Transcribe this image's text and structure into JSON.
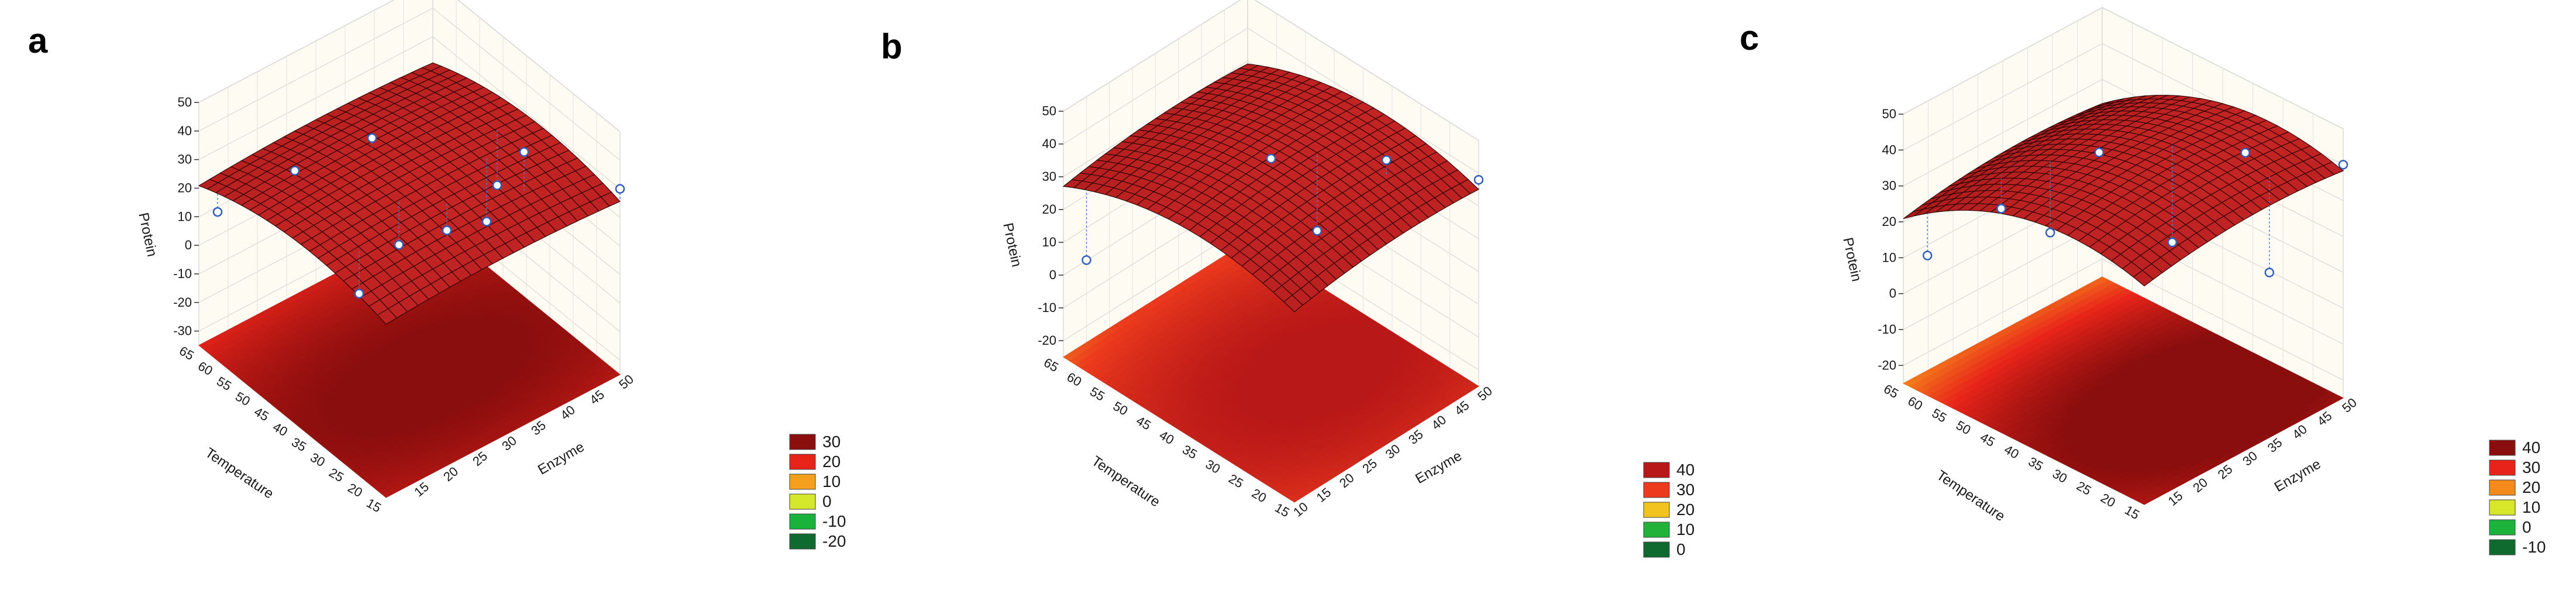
{
  "chart_data": [
    {
      "type": "surface3d",
      "panel_label": "a",
      "xlabel": "Enzyme",
      "ylabel": "Temperature",
      "zlabel": "Protein",
      "x_ticks": [
        "15",
        "20",
        "25",
        "30",
        "35",
        "40",
        "45",
        "50"
      ],
      "y_ticks": [
        "15",
        "20",
        "25",
        "30",
        "35",
        "40",
        "45",
        "50",
        "55",
        "60",
        "65"
      ],
      "z_ticks": [
        "-30",
        "-20",
        "-10",
        "0",
        "10",
        "20",
        "30",
        "40",
        "50"
      ],
      "xlim": [
        10,
        50
      ],
      "ylim": [
        15,
        65
      ],
      "zlim": [
        -35,
        50
      ],
      "surface_model": {
        "peak_x": 30,
        "peak_y": 35,
        "peak_z": 31,
        "ax": 0.004,
        "ay": 0.0095,
        "axy": 0
      },
      "points": [
        {
          "x": 50,
          "y": 15,
          "z": 30
        },
        {
          "x": 40,
          "y": 25,
          "z": 43
        },
        {
          "x": 45,
          "y": 40,
          "z": 10
        },
        {
          "x": 30,
          "y": 50,
          "z": 32
        },
        {
          "x": 20,
          "y": 55,
          "z": 26
        },
        {
          "x": 10,
          "y": 60,
          "z": 17
        },
        {
          "x": 30,
          "y": 30,
          "z": 21
        },
        {
          "x": 40,
          "y": 35,
          "z": 8
        },
        {
          "x": 25,
          "y": 35,
          "z": 16
        },
        {
          "x": 15,
          "y": 30,
          "z": 15
        }
      ],
      "legend": [
        {
          "label": "30",
          "color": "#8b0e0e"
        },
        {
          "label": "20",
          "color": "#e8241a"
        },
        {
          "label": "10",
          "color": "#f5a01c"
        },
        {
          "label": "0",
          "color": "#d5e82a"
        },
        {
          "label": "-10",
          "color": "#19b33c"
        },
        {
          "label": "-20",
          "color": "#0e6a2e"
        }
      ],
      "colors": {
        "surface": "#a71818",
        "mesh": "#2a0303"
      }
    },
    {
      "type": "surface3d",
      "panel_label": "b",
      "xlabel": "Enzyme",
      "ylabel": "Temperature",
      "zlabel": "Protein",
      "x_ticks": [
        "10",
        "15",
        "20",
        "25",
        "30",
        "35",
        "40",
        "45",
        "50"
      ],
      "y_ticks": [
        "15",
        "20",
        "25",
        "30",
        "35",
        "40",
        "45",
        "50",
        "55",
        "60",
        "65"
      ],
      "z_ticks": [
        "-20",
        "-10",
        "0",
        "10",
        "20",
        "30",
        "40",
        "50"
      ],
      "xlim": [
        10,
        50
      ],
      "ylim": [
        15,
        65
      ],
      "zlim": [
        -25,
        50
      ],
      "surface_model": {
        "peak_x": 35,
        "peak_y": 35,
        "peak_z": 41,
        "ax": 0.005,
        "ay": 0.012,
        "axy": 0
      },
      "points": [
        {
          "x": 50,
          "y": 15,
          "z": 38
        },
        {
          "x": 40,
          "y": 25,
          "z": 44
        },
        {
          "x": 30,
          "y": 40,
          "z": 40
        },
        {
          "x": 10,
          "y": 60,
          "z": 9
        },
        {
          "x": 35,
          "y": 35,
          "z": 18
        }
      ],
      "legend": [
        {
          "label": "40",
          "color": "#b91818"
        },
        {
          "label": "30",
          "color": "#ec3a1d"
        },
        {
          "label": "20",
          "color": "#f2c31f"
        },
        {
          "label": "10",
          "color": "#22b23a"
        },
        {
          "label": "0",
          "color": "#0e6a2e"
        }
      ],
      "colors": {
        "surface": "#a71818",
        "mesh": "#2a0303"
      }
    },
    {
      "type": "surface3d",
      "panel_label": "c",
      "xlabel": "Enzyme",
      "ylabel": "Temperature",
      "zlabel": "Protein",
      "x_ticks": [
        "15",
        "20",
        "25",
        "30",
        "35",
        "40",
        "45",
        "50"
      ],
      "y_ticks": [
        "15",
        "20",
        "25",
        "30",
        "35",
        "40",
        "45",
        "50",
        "55",
        "60",
        "65"
      ],
      "z_ticks": [
        "-20",
        "-10",
        "0",
        "10",
        "20",
        "30",
        "40",
        "50"
      ],
      "xlim": [
        10,
        50
      ],
      "ylim": [
        15,
        65
      ],
      "zlim": [
        -25,
        50
      ],
      "surface_model": {
        "peak_x": 35,
        "peak_y": 30,
        "peak_z": 43,
        "ax": 0.006,
        "ay": 0.015,
        "axy": 0
      },
      "points": [
        {
          "x": 50,
          "y": 15,
          "z": 40
        },
        {
          "x": 40,
          "y": 25,
          "z": 44
        },
        {
          "x": 30,
          "y": 45,
          "z": 38
        },
        {
          "x": 20,
          "y": 55,
          "z": 23
        },
        {
          "x": 10,
          "y": 60,
          "z": 14
        },
        {
          "x": 35,
          "y": 35,
          "z": 16
        },
        {
          "x": 40,
          "y": 20,
          "z": 14
        },
        {
          "x": 25,
          "y": 50,
          "z": 16
        }
      ],
      "legend": [
        {
          "label": "40",
          "color": "#8b0e0e"
        },
        {
          "label": "30",
          "color": "#e8241a"
        },
        {
          "label": "20",
          "color": "#f58a1c"
        },
        {
          "label": "10",
          "color": "#d8e62a"
        },
        {
          "label": "0",
          "color": "#1cb23c"
        },
        {
          "label": "-10",
          "color": "#0e6a2e"
        }
      ],
      "colors": {
        "surface": "#a71818",
        "mesh": "#2a0303"
      }
    }
  ]
}
